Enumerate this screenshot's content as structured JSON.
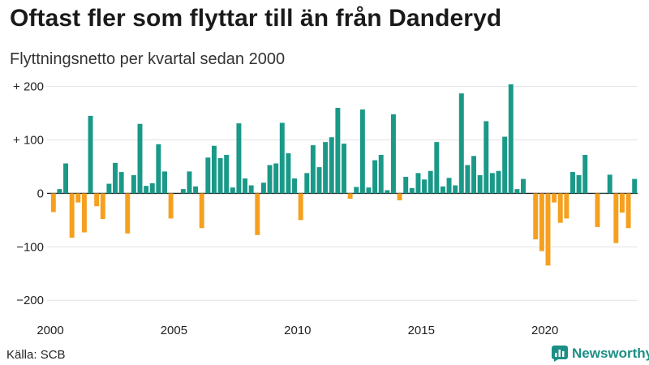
{
  "title": "Oftast fler som flyttar till än från Danderyd",
  "subtitle": "Flyttningsnetto per kvartal sedan 2000",
  "source": "Källa: SCB",
  "brand": "Newsworthy",
  "colors": {
    "positive": "#1a9988",
    "negative": "#f5a01e",
    "grid": "#e2e2e2",
    "axis": "#222222",
    "brand": "#1b8f85"
  },
  "icons": {
    "brand_logo": "bar-chart-logo-icon"
  },
  "chart_data": {
    "type": "bar",
    "xlabel": "",
    "ylabel": "",
    "x_start": 2000,
    "x_step": 0.25,
    "xlim": [
      2000,
      2023.75
    ],
    "ylim": [
      -230,
      210
    ],
    "y_ticks": [
      200,
      100,
      0,
      -100,
      -200
    ],
    "y_tick_labels": [
      "+ 200",
      "+ 100",
      "0",
      "−100",
      "−200"
    ],
    "x_ticks": [
      2000,
      2005,
      2010,
      2015,
      2020
    ],
    "x_tick_labels": [
      "2000",
      "2005",
      "2010",
      "2015",
      "2020"
    ],
    "grid": true,
    "values": [
      -35,
      8,
      56,
      -83,
      -17,
      -73,
      145,
      -24,
      -48,
      18,
      57,
      40,
      -75,
      34,
      130,
      14,
      19,
      92,
      41,
      -47,
      0,
      8,
      41,
      13,
      -65,
      67,
      89,
      66,
      72,
      11,
      131,
      28,
      15,
      -78,
      20,
      53,
      56,
      132,
      75,
      28,
      -50,
      38,
      90,
      49,
      96,
      105,
      160,
      93,
      -10,
      12,
      157,
      11,
      62,
      72,
      6,
      148,
      -13,
      31,
      10,
      38,
      26,
      42,
      96,
      13,
      29,
      15,
      187,
      53,
      70,
      34,
      135,
      38,
      42,
      106,
      204,
      8,
      27,
      0,
      -86,
      -108,
      -135,
      -17,
      -55,
      -47,
      40,
      34,
      72,
      0,
      -63,
      1,
      35,
      -93,
      -36,
      -65,
      27
    ]
  }
}
